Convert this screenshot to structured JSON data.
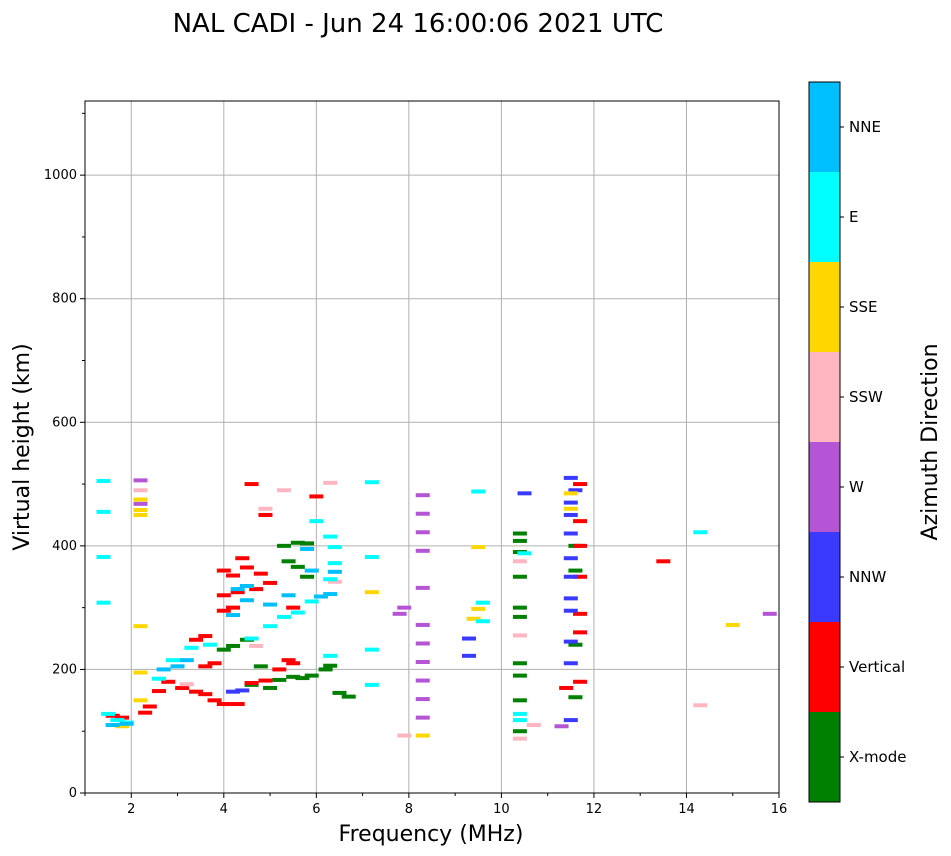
{
  "chart_data": {
    "type": "scatter",
    "title": "NAL CADI - Jun 24 16:00:06 2021 UTC",
    "xlabel": "Frequency (MHz)",
    "ylabel": "Virtual height (km)",
    "xlim": [
      1,
      16
    ],
    "ylim": [
      0,
      1120
    ],
    "xticks": [
      2,
      4,
      6,
      8,
      10,
      12,
      14,
      16
    ],
    "yticks": [
      0,
      200,
      400,
      600,
      800,
      1000
    ],
    "grid": true,
    "colorbar": {
      "label": "Azimuth Direction",
      "categories": [
        {
          "name": "X-mode",
          "color": "#008000"
        },
        {
          "name": "Vertical",
          "color": "#ff0000"
        },
        {
          "name": "NNW",
          "color": "#3a3aff"
        },
        {
          "name": "W",
          "color": "#b455d5"
        },
        {
          "name": "SSW",
          "color": "#ffb6c1"
        },
        {
          "name": "SSE",
          "color": "#ffd700"
        },
        {
          "name": "E",
          "color": "#00ffff"
        },
        {
          "name": "NNE",
          "color": "#00bfff"
        }
      ]
    },
    "series": [
      {
        "name": "X-mode",
        "points": [
          [
            4.0,
            232
          ],
          [
            4.2,
            238
          ],
          [
            4.5,
            248
          ],
          [
            5.2,
            183
          ],
          [
            5.5,
            188
          ],
          [
            5.7,
            186
          ],
          [
            5.9,
            190
          ],
          [
            6.2,
            200
          ],
          [
            6.3,
            206
          ],
          [
            6.5,
            162
          ],
          [
            6.7,
            156
          ],
          [
            5.6,
            405
          ],
          [
            5.8,
            404
          ],
          [
            5.3,
            400
          ],
          [
            5.4,
            375
          ],
          [
            5.6,
            366
          ],
          [
            5.8,
            350
          ],
          [
            10.4,
            420
          ],
          [
            10.4,
            408
          ],
          [
            10.4,
            390
          ],
          [
            10.4,
            350
          ],
          [
            10.4,
            300
          ],
          [
            10.4,
            285
          ],
          [
            10.4,
            210
          ],
          [
            10.4,
            190
          ],
          [
            10.4,
            150
          ],
          [
            10.4,
            100
          ],
          [
            11.6,
            400
          ],
          [
            11.6,
            360
          ],
          [
            11.6,
            240
          ],
          [
            11.6,
            155
          ],
          [
            4.8,
            205
          ],
          [
            4.6,
            175
          ],
          [
            5.0,
            170
          ]
        ]
      },
      {
        "name": "Vertical",
        "points": [
          [
            1.6,
            125
          ],
          [
            1.8,
            122
          ],
          [
            2.3,
            130
          ],
          [
            2.4,
            140
          ],
          [
            2.6,
            165
          ],
          [
            2.8,
            180
          ],
          [
            3.1,
            170
          ],
          [
            3.4,
            164
          ],
          [
            3.6,
            160
          ],
          [
            3.8,
            150
          ],
          [
            3.6,
            205
          ],
          [
            3.8,
            210
          ],
          [
            3.4,
            248
          ],
          [
            3.6,
            254
          ],
          [
            4.0,
            144
          ],
          [
            4.3,
            144
          ],
          [
            4.6,
            178
          ],
          [
            4.9,
            182
          ],
          [
            5.2,
            200
          ],
          [
            5.4,
            215
          ],
          [
            4.4,
            380
          ],
          [
            4.5,
            365
          ],
          [
            4.8,
            355
          ],
          [
            4.0,
            360
          ],
          [
            4.2,
            352
          ],
          [
            4.0,
            320
          ],
          [
            4.3,
            325
          ],
          [
            4.0,
            295
          ],
          [
            4.2,
            300
          ],
          [
            4.7,
            330
          ],
          [
            5.0,
            340
          ],
          [
            4.6,
            500
          ],
          [
            4.9,
            450
          ],
          [
            6.0,
            480
          ],
          [
            11.7,
            500
          ],
          [
            11.7,
            440
          ],
          [
            11.7,
            400
          ],
          [
            11.7,
            350
          ],
          [
            11.7,
            290
          ],
          [
            11.7,
            260
          ],
          [
            11.7,
            180
          ],
          [
            13.5,
            375
          ],
          [
            11.4,
            170
          ],
          [
            5.5,
            300
          ],
          [
            5.5,
            210
          ]
        ]
      },
      {
        "name": "NNW",
        "points": [
          [
            4.2,
            164
          ],
          [
            4.4,
            166
          ],
          [
            10.5,
            485
          ],
          [
            9.3,
            250
          ],
          [
            9.3,
            222
          ],
          [
            11.5,
            510
          ],
          [
            11.5,
            470
          ],
          [
            11.5,
            450
          ],
          [
            11.5,
            420
          ],
          [
            11.5,
            380
          ],
          [
            11.5,
            350
          ],
          [
            11.5,
            315
          ],
          [
            11.5,
            295
          ],
          [
            11.5,
            245
          ],
          [
            11.5,
            210
          ],
          [
            11.5,
            118
          ],
          [
            11.6,
            490
          ]
        ]
      },
      {
        "name": "W",
        "points": [
          [
            8.3,
            482
          ],
          [
            8.3,
            452
          ],
          [
            8.3,
            422
          ],
          [
            8.3,
            392
          ],
          [
            8.3,
            332
          ],
          [
            8.3,
            272
          ],
          [
            8.3,
            242
          ],
          [
            8.3,
            212
          ],
          [
            8.3,
            182
          ],
          [
            8.3,
            152
          ],
          [
            8.3,
            122
          ],
          [
            7.8,
            290
          ],
          [
            7.9,
            300
          ],
          [
            15.8,
            290
          ],
          [
            11.3,
            108
          ],
          [
            2.2,
            506
          ],
          [
            2.2,
            468
          ]
        ]
      },
      {
        "name": "SSW",
        "points": [
          [
            6.3,
            502
          ],
          [
            6.4,
            342
          ],
          [
            5.3,
            490
          ],
          [
            4.9,
            460
          ],
          [
            7.9,
            93
          ],
          [
            10.4,
            255
          ],
          [
            10.4,
            375
          ],
          [
            10.7,
            110
          ],
          [
            14.3,
            142
          ],
          [
            10.4,
            88
          ],
          [
            2.2,
            490
          ],
          [
            3.2,
            176
          ],
          [
            4.7,
            238
          ]
        ]
      },
      {
        "name": "SSE",
        "points": [
          [
            1.6,
            110
          ],
          [
            1.8,
            108
          ],
          [
            2.2,
            475
          ],
          [
            2.2,
            458
          ],
          [
            2.2,
            450
          ],
          [
            2.2,
            270
          ],
          [
            2.2,
            195
          ],
          [
            2.2,
            150
          ],
          [
            8.3,
            93
          ],
          [
            9.4,
            282
          ],
          [
            9.5,
            298
          ],
          [
            9.5,
            398
          ],
          [
            15.0,
            272
          ],
          [
            7.2,
            325
          ],
          [
            11.5,
            485
          ],
          [
            11.5,
            460
          ]
        ]
      },
      {
        "name": "E",
        "points": [
          [
            1.4,
            505
          ],
          [
            1.4,
            455
          ],
          [
            1.4,
            382
          ],
          [
            1.4,
            308
          ],
          [
            1.5,
            128
          ],
          [
            1.7,
            118
          ],
          [
            1.9,
            114
          ],
          [
            2.6,
            185
          ],
          [
            2.9,
            215
          ],
          [
            3.3,
            235
          ],
          [
            3.7,
            240
          ],
          [
            4.6,
            250
          ],
          [
            5.0,
            270
          ],
          [
            5.3,
            285
          ],
          [
            5.6,
            292
          ],
          [
            5.9,
            310
          ],
          [
            6.3,
            346
          ],
          [
            6.4,
            372
          ],
          [
            6.4,
            398
          ],
          [
            6.0,
            440
          ],
          [
            6.3,
            415
          ],
          [
            6.3,
            222
          ],
          [
            7.2,
            382
          ],
          [
            7.2,
            232
          ],
          [
            7.2,
            175
          ],
          [
            9.5,
            488
          ],
          [
            9.6,
            308
          ],
          [
            9.6,
            278
          ],
          [
            10.4,
            128
          ],
          [
            10.4,
            118
          ],
          [
            10.5,
            388
          ],
          [
            14.3,
            422
          ],
          [
            7.2,
            503
          ]
        ]
      },
      {
        "name": "NNE",
        "points": [
          [
            1.6,
            110
          ],
          [
            2.7,
            200
          ],
          [
            3.0,
            205
          ],
          [
            3.2,
            215
          ],
          [
            4.2,
            288
          ],
          [
            4.3,
            330
          ],
          [
            4.5,
            335
          ],
          [
            4.5,
            312
          ],
          [
            5.0,
            305
          ],
          [
            5.4,
            320
          ],
          [
            6.3,
            322
          ],
          [
            6.4,
            358
          ],
          [
            5.8,
            395
          ],
          [
            5.9,
            360
          ],
          [
            6.1,
            318
          ],
          [
            1.9,
            112
          ]
        ]
      }
    ]
  }
}
